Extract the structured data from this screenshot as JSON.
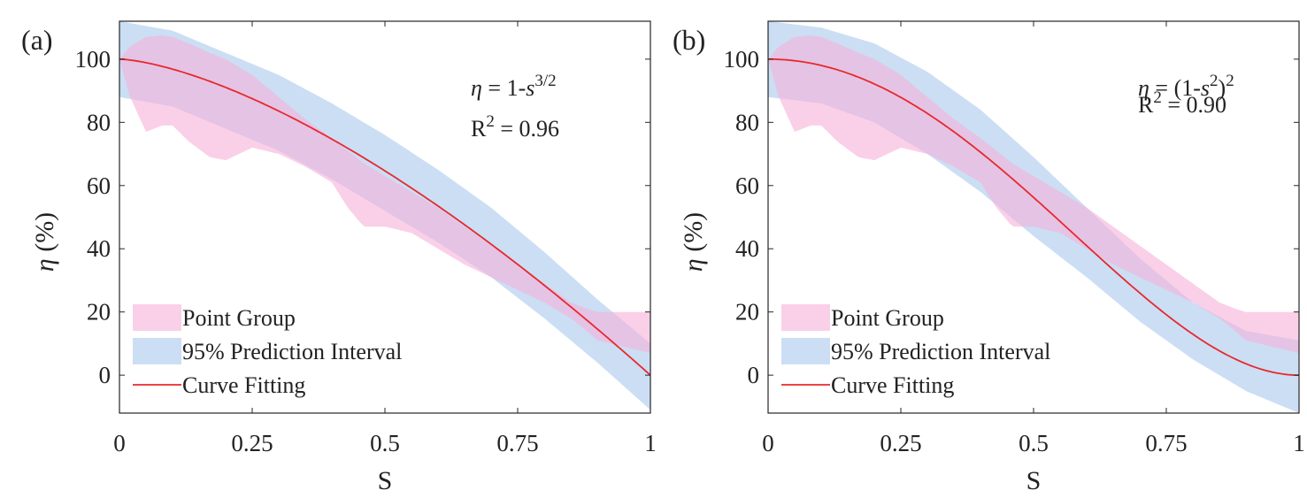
{
  "chart_data": [
    {
      "panel_label": "(a)",
      "type": "area",
      "xlabel": "S",
      "ylabel_symbol": "η",
      "ylabel_unit": " (%)",
      "xlim": [
        0,
        1
      ],
      "ylim": [
        -12,
        112
      ],
      "xticks": [
        0,
        0.25,
        0.5,
        0.75,
        1
      ],
      "xtick_labels": [
        "0",
        "0.25",
        "0.5",
        "0.75",
        "1"
      ],
      "yticks": [
        0,
        20,
        40,
        60,
        80,
        100
      ],
      "ytick_labels": [
        "0",
        "20",
        "40",
        "60",
        "80",
        "100"
      ],
      "annotation": {
        "eq_lhs": "η",
        "eq_mid": " = 1-",
        "eq_var": "s",
        "eq_sup": "3/2",
        "eq_close": "",
        "eq_sup2": "",
        "r2_label": "R",
        "r2_sup": "2",
        "r2_value": " = 0.96"
      },
      "legend_position": "bottom-left",
      "legend": [
        "Point Group",
        "95% Prediction Interval",
        "Curve Fitting"
      ],
      "point_group_band": {
        "x": [
          0,
          0.02,
          0.05,
          0.08,
          0.1,
          0.13,
          0.17,
          0.2,
          0.25,
          0.3,
          0.35,
          0.4,
          0.43,
          0.46,
          0.5,
          0.55,
          0.6,
          0.65,
          0.7,
          0.75,
          0.8,
          0.85,
          0.88,
          0.9,
          0.95,
          1
        ],
        "lower": [
          100,
          88,
          77,
          79,
          79,
          74,
          69,
          68,
          72,
          70,
          66,
          61,
          53,
          47,
          47,
          45,
          40,
          35,
          31,
          27,
          23,
          18,
          14,
          11,
          9,
          7
        ],
        "upper": [
          100,
          104,
          107,
          107.5,
          107,
          105,
          102,
          100,
          95,
          88,
          81,
          75,
          71,
          67,
          63,
          58,
          53,
          47,
          41,
          35,
          29,
          23,
          21,
          20,
          20,
          20
        ]
      },
      "prediction_band": {
        "x": [
          0,
          0.1,
          0.2,
          0.3,
          0.4,
          0.5,
          0.6,
          0.7,
          0.8,
          0.9,
          1
        ],
        "lower": [
          88,
          85,
          78,
          71,
          62,
          52,
          42,
          31,
          18,
          4,
          -11
        ],
        "upper": [
          112,
          109,
          102,
          95,
          86,
          76,
          65,
          53,
          39,
          24,
          10
        ]
      },
      "fit_curve": "1 - s^(3/2)"
    },
    {
      "panel_label": "(b)",
      "type": "area",
      "xlabel": "S",
      "ylabel_symbol": "η",
      "ylabel_unit": " (%)",
      "xlim": [
        0,
        1
      ],
      "ylim": [
        -12,
        112
      ],
      "xticks": [
        0,
        0.25,
        0.5,
        0.75,
        1
      ],
      "xtick_labels": [
        "0",
        "0.25",
        "0.5",
        "0.75",
        "1"
      ],
      "yticks": [
        0,
        20,
        40,
        60,
        80,
        100
      ],
      "ytick_labels": [
        "0",
        "20",
        "40",
        "60",
        "80",
        "100"
      ],
      "annotation": {
        "eq_lhs": "η",
        "eq_mid": " = (1-",
        "eq_var": "s",
        "eq_sup": "2",
        "eq_close": ")",
        "eq_sup2": "2",
        "r2_label": "R",
        "r2_sup": "2",
        "r2_value": " = 0.90"
      },
      "legend_position": "bottom-left",
      "legend": [
        "Point Group",
        "95% Prediction Interval",
        "Curve Fitting"
      ],
      "point_group_band": {
        "x": [
          0,
          0.02,
          0.05,
          0.08,
          0.1,
          0.13,
          0.17,
          0.2,
          0.25,
          0.3,
          0.35,
          0.4,
          0.43,
          0.46,
          0.5,
          0.55,
          0.6,
          0.65,
          0.7,
          0.75,
          0.8,
          0.85,
          0.88,
          0.9,
          0.95,
          1
        ],
        "lower": [
          100,
          88,
          77,
          79,
          79,
          74,
          69,
          68,
          72,
          70,
          66,
          61,
          53,
          47,
          47,
          45,
          40,
          35,
          31,
          27,
          23,
          18,
          14,
          11,
          9,
          7
        ],
        "upper": [
          100,
          104,
          107,
          107.5,
          107,
          105,
          102,
          100,
          95,
          88,
          81,
          75,
          71,
          67,
          63,
          58,
          53,
          47,
          41,
          35,
          29,
          23,
          21,
          20,
          20,
          20
        ]
      },
      "prediction_band": {
        "x": [
          0,
          0.1,
          0.2,
          0.3,
          0.4,
          0.5,
          0.6,
          0.7,
          0.8,
          0.9,
          1
        ],
        "lower": [
          88,
          86,
          80,
          70,
          58,
          44,
          31,
          17,
          5,
          -5,
          -12
        ],
        "upper": [
          112,
          110,
          105,
          96,
          84,
          69,
          53,
          37,
          23,
          14,
          11
        ]
      },
      "fit_curve": "(1 - s^2)^2"
    }
  ],
  "colors": {
    "point_group_fill": "#f7b0d8",
    "prediction_fill": "#a9c8ec",
    "fit_line": "#e8282c",
    "axes": "#262626"
  }
}
